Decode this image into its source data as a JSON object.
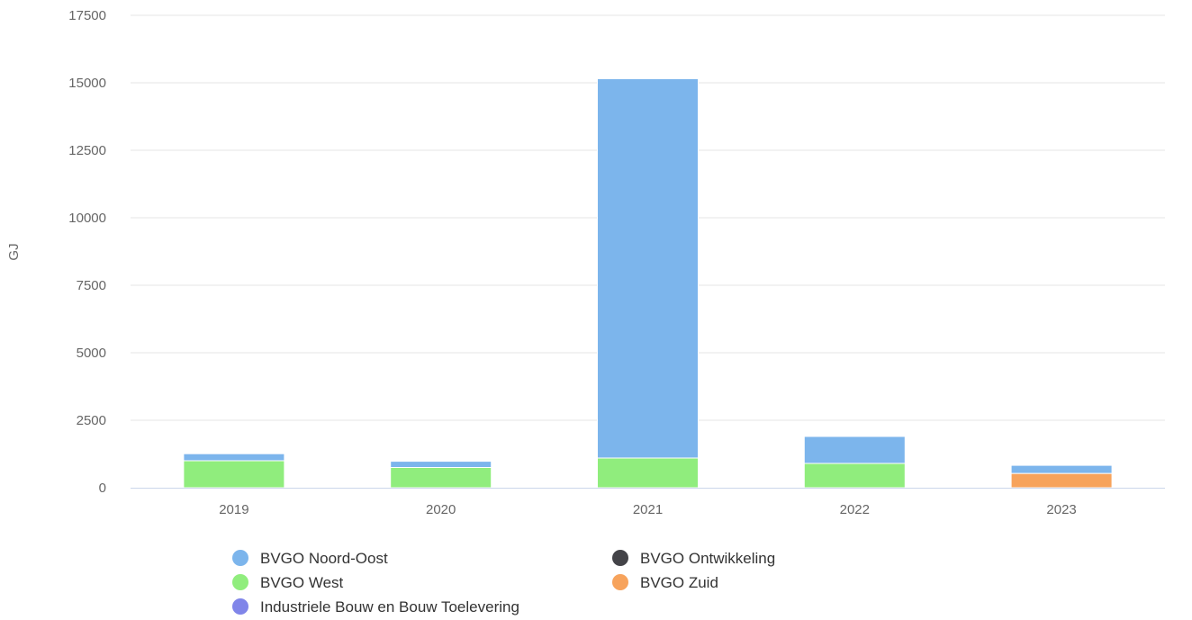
{
  "chart_data": {
    "type": "bar",
    "stacked": true,
    "title": "",
    "xlabel": "",
    "ylabel": "GJ",
    "ylim": [
      0,
      17500
    ],
    "yticks": [
      0,
      2500,
      5000,
      7500,
      10000,
      12500,
      15000,
      17500
    ],
    "grid": true,
    "legend_position": "bottom",
    "categories": [
      "2019",
      "2020",
      "2021",
      "2022",
      "2023"
    ],
    "series": [
      {
        "name": "BVGO Zuid",
        "color": "#f7a35c",
        "values": [
          0,
          0,
          0,
          0,
          530
        ]
      },
      {
        "name": "BVGO West",
        "color": "#90ed7d",
        "values": [
          1000,
          750,
          1100,
          900,
          0
        ]
      },
      {
        "name": "BVGO Noord-Oost",
        "color": "#7cb5ec",
        "values": [
          260,
          230,
          14050,
          1000,
          300
        ]
      },
      {
        "name": "BVGO Ontwikkeling",
        "color": "#434348",
        "values": [
          0,
          0,
          0,
          0,
          0
        ]
      },
      {
        "name": "Industriele Bouw en Bouw Toelevering",
        "color": "#8085e9",
        "values": [
          0,
          0,
          0,
          0,
          0
        ]
      }
    ],
    "legend": [
      {
        "name": "BVGO Noord-Oost",
        "color": "#7cb5ec"
      },
      {
        "name": "BVGO Ontwikkeling",
        "color": "#434348"
      },
      {
        "name": "BVGO West",
        "color": "#90ed7d"
      },
      {
        "name": "BVGO Zuid",
        "color": "#f7a35c"
      },
      {
        "name": "Industriele Bouw en Bouw Toelevering",
        "color": "#8085e9"
      }
    ]
  }
}
